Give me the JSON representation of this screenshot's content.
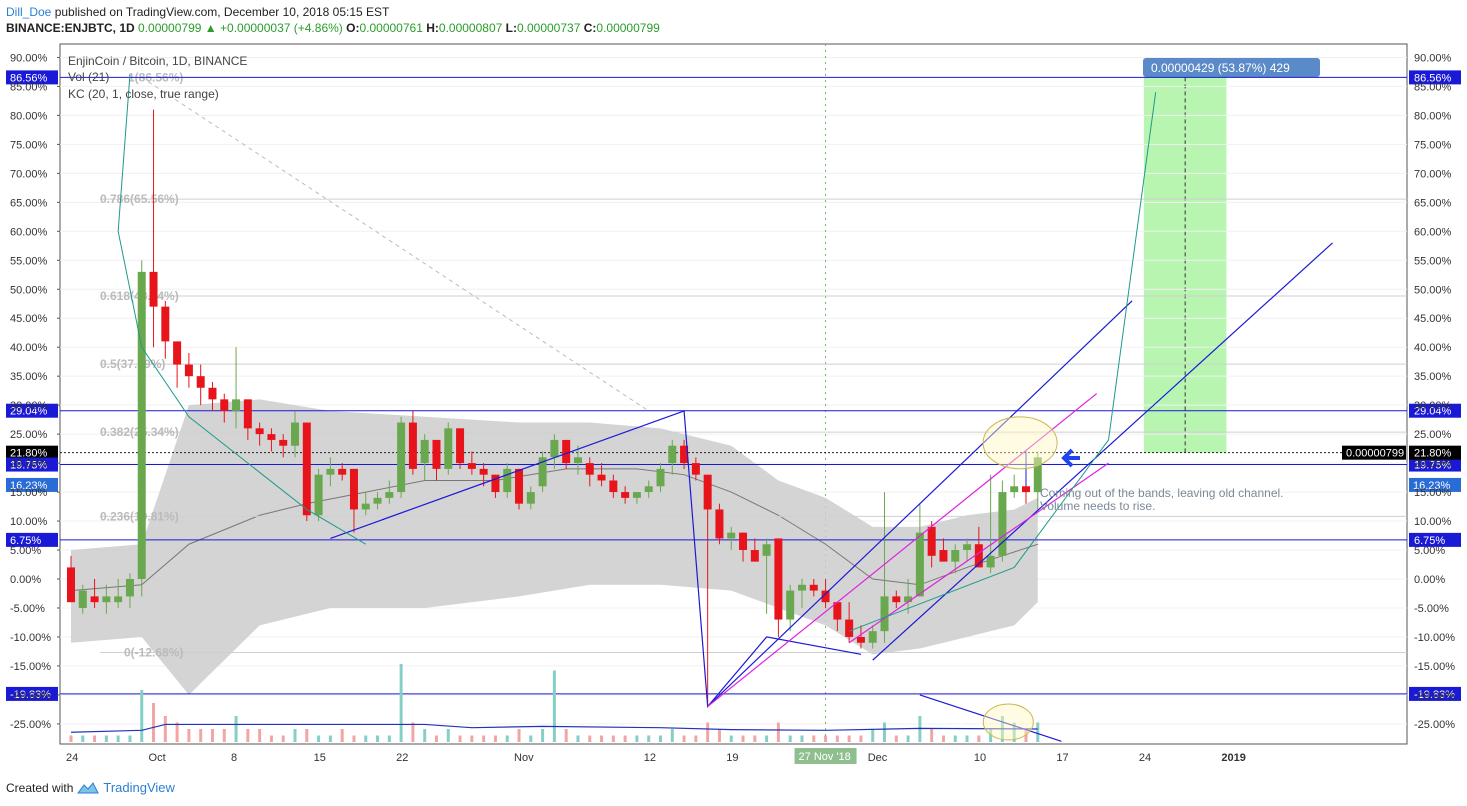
{
  "header": {
    "author": "Dill_Doe",
    "published": " published on TradingView.com, December 10, 2018 05:15 EST",
    "symbol": "BINANCE:ENJBTC, 1D",
    "last": "0.00000799",
    "change": "+0.00000037 (+4.86%)",
    "o_label": "O:",
    "o": "0.00000761",
    "h_label": "H:",
    "h": "0.00000807",
    "l_label": "L:",
    "l": "0.00000737",
    "c_label": "C:",
    "c": "0.00000799"
  },
  "legend": {
    "title": "EnjinCoin / Bitcoin, 1D, BINANCE",
    "vol": "Vol (21)",
    "kc": "KC (20, 1, close, true range)"
  },
  "footer": {
    "created": "Created with",
    "brand": "TradingView"
  },
  "colors": {
    "up": "#6aa84f",
    "down": "#e8141c",
    "blue": "#1a1ad6",
    "magenta": "#e020e0",
    "teal": "#1e9a8a",
    "band": "#cccccc",
    "target": "#b8f5b0"
  },
  "chart_data": {
    "type": "candlestick",
    "y_unit": "percent change",
    "ylim": [
      -29,
      91
    ],
    "y_ticks": [
      90,
      85,
      80,
      75,
      70,
      65,
      60,
      55,
      50,
      45,
      40,
      35,
      30,
      25,
      20,
      15,
      10,
      5,
      0,
      -5,
      -10,
      -15,
      -20,
      -25
    ],
    "x_ticks": [
      {
        "label": "24",
        "day": 0
      },
      {
        "label": "Oct",
        "day": 7
      },
      {
        "label": "8",
        "day": 14
      },
      {
        "label": "15",
        "day": 21
      },
      {
        "label": "22",
        "day": 28
      },
      {
        "label": "Nov",
        "day": 38
      },
      {
        "label": "12",
        "day": 49
      },
      {
        "label": "19",
        "day": 56
      },
      {
        "label": "27 Nov '18",
        "day": 64
      },
      {
        "label": "Dec",
        "day": 68
      },
      {
        "label": "10",
        "day": 77
      },
      {
        "label": "17",
        "day": 84
      },
      {
        "label": "24",
        "day": 91
      },
      {
        "label": "2019",
        "day": 98
      }
    ],
    "candles": [
      [
        0,
        2,
        4,
        -4,
        -4
      ],
      [
        1,
        -5,
        -1,
        -6,
        -2
      ],
      [
        2,
        -3,
        0,
        -5,
        -4
      ],
      [
        3,
        -4,
        -1,
        -6,
        -3
      ],
      [
        4,
        -4,
        0,
        -5,
        -3
      ],
      [
        5,
        -3,
        1,
        -5,
        0
      ],
      [
        6,
        0,
        55,
        -3,
        53
      ],
      [
        7,
        53,
        81,
        40,
        47
      ],
      [
        8,
        47,
        48,
        38,
        41
      ],
      [
        9,
        41,
        41,
        33,
        37
      ],
      [
        10,
        37,
        39,
        33,
        35
      ],
      [
        11,
        35,
        37,
        30,
        33
      ],
      [
        12,
        33,
        34,
        29,
        31
      ],
      [
        13,
        31,
        32,
        27,
        29
      ],
      [
        14,
        29,
        40,
        26,
        31
      ],
      [
        15,
        31,
        31,
        24,
        26
      ],
      [
        16,
        26,
        27,
        23,
        25
      ],
      [
        17,
        25,
        26,
        22,
        24
      ],
      [
        18,
        24,
        25,
        21,
        23
      ],
      [
        19,
        23,
        29,
        21,
        27
      ],
      [
        20,
        27,
        27,
        10,
        11
      ],
      [
        21,
        11,
        19,
        10,
        18
      ],
      [
        22,
        18,
        21,
        16,
        19
      ],
      [
        23,
        19,
        20,
        17,
        18
      ],
      [
        24,
        19,
        19,
        8,
        12
      ],
      [
        25,
        12,
        15,
        11,
        13
      ],
      [
        26,
        13,
        15,
        12,
        14
      ],
      [
        27,
        14,
        17,
        13,
        15
      ],
      [
        28,
        15,
        28,
        14,
        27
      ],
      [
        29,
        27,
        29,
        18,
        19
      ],
      [
        30,
        20,
        25,
        17,
        24
      ],
      [
        31,
        24,
        24,
        17,
        19
      ],
      [
        32,
        19,
        27,
        18,
        26
      ],
      [
        33,
        26,
        26,
        19,
        20
      ],
      [
        34,
        20,
        22,
        18,
        19
      ],
      [
        35,
        19,
        20,
        16,
        18
      ],
      [
        36,
        18,
        18,
        14,
        15
      ],
      [
        37,
        15,
        20,
        14,
        19
      ],
      [
        38,
        19,
        19,
        12,
        13
      ],
      [
        39,
        13,
        16,
        12,
        15
      ],
      [
        40,
        16,
        22,
        15,
        21
      ],
      [
        41,
        21,
        25,
        19,
        24
      ],
      [
        42,
        24,
        24,
        19,
        20
      ],
      [
        43,
        20,
        23,
        18,
        21
      ],
      [
        44,
        20,
        21,
        16,
        18
      ],
      [
        45,
        18,
        20,
        16,
        17
      ],
      [
        46,
        17,
        18,
        14,
        15
      ],
      [
        47,
        15,
        16,
        13,
        14
      ],
      [
        48,
        14,
        15,
        13,
        15
      ],
      [
        49,
        15,
        17,
        14,
        16
      ],
      [
        50,
        16,
        20,
        15,
        19
      ],
      [
        51,
        20,
        24,
        18,
        23
      ],
      [
        52,
        23,
        24,
        19,
        20
      ],
      [
        53,
        20,
        21,
        17,
        18
      ],
      [
        54,
        18,
        18,
        -22,
        12
      ],
      [
        55,
        12,
        13,
        6,
        7
      ],
      [
        56,
        7,
        9,
        5,
        8
      ],
      [
        57,
        8,
        8,
        3,
        5
      ],
      [
        58,
        5,
        7,
        3,
        3
      ],
      [
        59,
        4,
        7,
        -6,
        6
      ],
      [
        60,
        7,
        7,
        -10,
        -7
      ],
      [
        61,
        -7,
        -1,
        -9,
        -2
      ],
      [
        62,
        -2,
        0,
        -5,
        -1
      ],
      [
        63,
        -1,
        0,
        -3,
        -2
      ],
      [
        64,
        -2,
        0,
        -5,
        -4
      ],
      [
        65,
        -4,
        -4,
        -9,
        -7
      ],
      [
        66,
        -7,
        -4,
        -11,
        -10
      ],
      [
        67,
        -10,
        -8,
        -12,
        -11
      ],
      [
        68,
        -11,
        -8,
        -12,
        -9
      ],
      [
        69,
        -9,
        15,
        -11,
        -3
      ],
      [
        70,
        -3,
        -2,
        -5,
        -4
      ],
      [
        71,
        -4,
        0,
        -6,
        -3
      ],
      [
        72,
        -3,
        13,
        -3,
        8
      ],
      [
        73,
        9,
        10,
        2,
        4
      ],
      [
        74,
        5,
        7,
        3,
        3
      ],
      [
        75,
        3,
        6,
        1,
        5
      ],
      [
        76,
        5,
        7,
        3,
        6
      ],
      [
        77,
        6,
        9,
        2,
        2
      ],
      [
        78,
        2,
        18,
        1,
        4
      ],
      [
        79,
        4,
        17,
        3,
        15
      ],
      [
        80,
        15,
        18,
        14,
        16
      ],
      [
        81,
        16,
        20,
        13,
        15
      ],
      [
        82,
        15,
        22,
        12,
        21
      ]
    ],
    "kc_mid": [
      [
        0,
        -2
      ],
      [
        6,
        -1
      ],
      [
        10,
        6
      ],
      [
        16,
        11
      ],
      [
        20,
        13
      ],
      [
        25,
        15
      ],
      [
        30,
        17
      ],
      [
        36,
        17
      ],
      [
        42,
        19
      ],
      [
        48,
        19
      ],
      [
        52,
        18
      ],
      [
        56,
        15
      ],
      [
        60,
        11
      ],
      [
        64,
        6
      ],
      [
        68,
        0
      ],
      [
        72,
        -1
      ],
      [
        76,
        2
      ],
      [
        79,
        4
      ],
      [
        82,
        6
      ]
    ],
    "kc_upper": [
      [
        0,
        5
      ],
      [
        6,
        6
      ],
      [
        10,
        30
      ],
      [
        16,
        31
      ],
      [
        22,
        29
      ],
      [
        30,
        28
      ],
      [
        38,
        27
      ],
      [
        44,
        27
      ],
      [
        50,
        26
      ],
      [
        56,
        23
      ],
      [
        60,
        17
      ],
      [
        64,
        14
      ],
      [
        68,
        9
      ],
      [
        72,
        9
      ],
      [
        76,
        11
      ],
      [
        80,
        12
      ],
      [
        82,
        14
      ]
    ],
    "kc_lower": [
      [
        0,
        -11
      ],
      [
        6,
        -10
      ],
      [
        10,
        -20
      ],
      [
        16,
        -8
      ],
      [
        22,
        -5
      ],
      [
        30,
        -5
      ],
      [
        38,
        -3
      ],
      [
        44,
        -1
      ],
      [
        50,
        -1
      ],
      [
        56,
        -2
      ],
      [
        60,
        -5
      ],
      [
        64,
        -8
      ],
      [
        68,
        -13
      ],
      [
        72,
        -12
      ],
      [
        76,
        -10
      ],
      [
        80,
        -8
      ],
      [
        82,
        -4
      ]
    ],
    "volume_hint": [
      [
        0,
        1
      ],
      [
        1,
        1
      ],
      [
        2,
        1
      ],
      [
        3,
        1
      ],
      [
        4,
        1
      ],
      [
        5,
        1
      ],
      [
        6,
        8
      ],
      [
        7,
        6
      ],
      [
        8,
        4
      ],
      [
        9,
        3
      ],
      [
        10,
        2
      ],
      [
        11,
        2
      ],
      [
        12,
        2
      ],
      [
        13,
        2
      ],
      [
        14,
        4
      ],
      [
        15,
        2
      ],
      [
        16,
        2
      ],
      [
        17,
        1
      ],
      [
        18,
        1
      ],
      [
        19,
        2
      ],
      [
        20,
        2
      ],
      [
        21,
        1
      ],
      [
        22,
        1
      ],
      [
        23,
        2
      ],
      [
        24,
        1
      ],
      [
        25,
        1
      ],
      [
        26,
        1
      ],
      [
        27,
        1
      ],
      [
        28,
        12
      ],
      [
        29,
        3
      ],
      [
        30,
        2
      ],
      [
        31,
        1
      ],
      [
        32,
        2
      ],
      [
        33,
        1
      ],
      [
        34,
        1
      ],
      [
        35,
        1
      ],
      [
        36,
        1
      ],
      [
        37,
        1
      ],
      [
        38,
        2
      ],
      [
        39,
        1
      ],
      [
        40,
        2
      ],
      [
        41,
        11
      ],
      [
        42,
        2
      ],
      [
        43,
        1
      ],
      [
        44,
        1
      ],
      [
        45,
        1
      ],
      [
        46,
        1
      ],
      [
        47,
        1
      ],
      [
        48,
        1
      ],
      [
        49,
        1
      ],
      [
        50,
        1
      ],
      [
        51,
        2
      ],
      [
        52,
        1
      ],
      [
        53,
        1
      ],
      [
        54,
        3
      ],
      [
        55,
        2
      ],
      [
        56,
        1
      ],
      [
        57,
        1
      ],
      [
        58,
        1
      ],
      [
        59,
        1
      ],
      [
        60,
        3
      ],
      [
        61,
        1
      ],
      [
        62,
        1
      ],
      [
        63,
        1
      ],
      [
        64,
        1
      ],
      [
        65,
        1
      ],
      [
        66,
        1
      ],
      [
        67,
        1
      ],
      [
        68,
        2
      ],
      [
        69,
        3
      ],
      [
        70,
        1
      ],
      [
        71,
        1
      ],
      [
        72,
        4
      ],
      [
        73,
        2
      ],
      [
        74,
        1
      ],
      [
        75,
        1
      ],
      [
        76,
        1
      ],
      [
        77,
        1
      ],
      [
        78,
        2
      ],
      [
        79,
        4
      ],
      [
        80,
        3
      ],
      [
        81,
        2
      ],
      [
        82,
        3
      ]
    ],
    "volume_ma": [
      [
        0,
        1.5
      ],
      [
        6,
        1.8
      ],
      [
        8,
        2.7
      ],
      [
        30,
        2.7
      ],
      [
        34,
        2.2
      ],
      [
        40,
        2.4
      ],
      [
        50,
        2.2
      ],
      [
        56,
        1.9
      ],
      [
        64,
        1.8
      ],
      [
        72,
        2.1
      ],
      [
        82,
        2.0
      ]
    ],
    "h_levels": [
      {
        "value": 86.56,
        "label": "86.56%"
      },
      {
        "value": 29.04,
        "label": "29.04%"
      },
      {
        "value": 21.8,
        "label": "21.80%"
      },
      {
        "value": 19.75,
        "label": "19.75%"
      },
      {
        "value": 6.75,
        "label": "6.75%"
      },
      {
        "value": -19.83,
        "label": "-19.83%"
      }
    ],
    "right_labels": [
      {
        "value": 16.23,
        "label": "16.23%"
      },
      {
        "value": 21.8,
        "label": "0.00000799"
      }
    ],
    "fib": [
      {
        "value": 86.56,
        "label": "1(86.56%)"
      },
      {
        "value": 65.56,
        "label": "0.786(65.56%)"
      },
      {
        "value": 48.84,
        "label": "0.618(48.84%)"
      },
      {
        "value": 37.09,
        "label": "0.5(37.09%)"
      },
      {
        "value": 25.34,
        "label": "0.382(25.34%)"
      },
      {
        "value": 10.81,
        "label": "0.236(10.81%)"
      },
      {
        "value": -12.68,
        "label": "0(-12.68%)"
      }
    ],
    "target_box": {
      "x_from": 91,
      "x_to": 98,
      "y_from": 21.8,
      "y_to": 86.56,
      "label": "0.00000429 (53.87%) 429"
    },
    "note": [
      "Coming out of the bands, leaving old channel.",
      "Volume needs to rise."
    ]
  }
}
